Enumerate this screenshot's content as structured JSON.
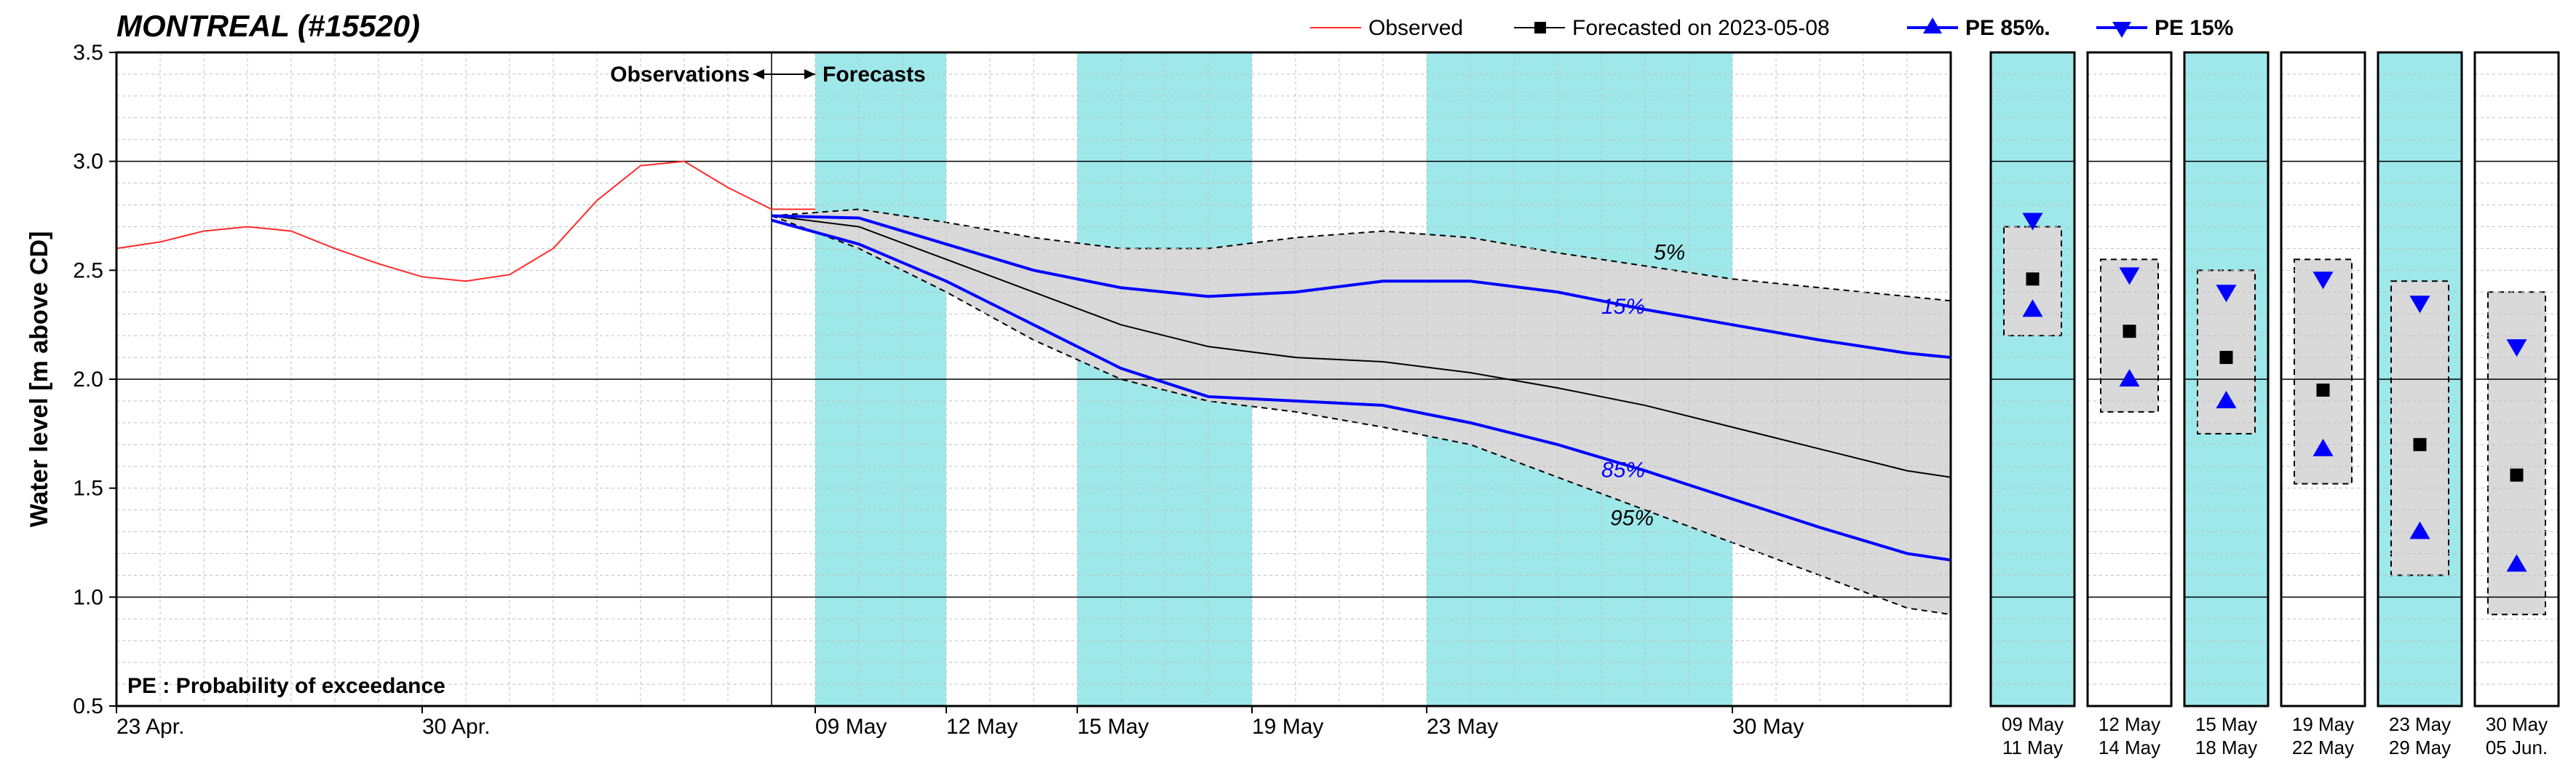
{
  "title_text": "MONTREAL (#15520)",
  "y_axis_label": "Water level [m above CD]",
  "obs_label": "Observations",
  "fcst_label": "Forecasts",
  "pe_legend": "PE : Probability of exceedance",
  "legend": {
    "observed": "Observed",
    "forecasted": "Forecasted on 2023-05-08",
    "pe85": "PE 85%.",
    "pe15": "PE 15%"
  },
  "colors": {
    "observed": "#ff2a2a",
    "forecast_median": "#000000",
    "pe_line": "#0000ff",
    "band_fill": "#d9d9d9",
    "weekend_fill": "#9ee8ea",
    "grid_minor": "#bfbfbf",
    "background": "#ffffff"
  },
  "main_chart": {
    "x_domain_days": [
      0,
      42
    ],
    "x_ticks": [
      {
        "d": 0,
        "label": "23 Apr."
      },
      {
        "d": 7,
        "label": "30 Apr."
      },
      {
        "d": 16,
        "label": "09 May"
      },
      {
        "d": 19,
        "label": "12 May"
      },
      {
        "d": 22,
        "label": "15 May"
      },
      {
        "d": 26,
        "label": "19 May"
      },
      {
        "d": 30,
        "label": "23 May"
      },
      {
        "d": 37,
        "label": "30 May"
      }
    ],
    "y_lim": [
      0.5,
      3.5
    ],
    "y_tick_step": 0.5,
    "forecast_start_day": 15,
    "weekend_bands_days": [
      [
        16,
        19
      ],
      [
        22,
        26
      ],
      [
        30,
        37
      ]
    ],
    "observed": [
      [
        0,
        2.6
      ],
      [
        1,
        2.63
      ],
      [
        2,
        2.68
      ],
      [
        3,
        2.7
      ],
      [
        4,
        2.68
      ],
      [
        5,
        2.6
      ],
      [
        6,
        2.53
      ],
      [
        7,
        2.47
      ],
      [
        8,
        2.45
      ],
      [
        9,
        2.48
      ],
      [
        10,
        2.6
      ],
      [
        11,
        2.82
      ],
      [
        12,
        2.98
      ],
      [
        13,
        3.0
      ],
      [
        14,
        2.88
      ],
      [
        15,
        2.78
      ],
      [
        16,
        2.78
      ]
    ],
    "band95": [
      [
        15,
        2.75
      ],
      [
        17,
        2.6
      ],
      [
        19,
        2.4
      ],
      [
        21,
        2.18
      ],
      [
        23,
        2.0
      ],
      [
        25,
        1.9
      ],
      [
        27,
        1.85
      ],
      [
        29,
        1.78
      ],
      [
        31,
        1.7
      ],
      [
        33,
        1.55
      ],
      [
        35,
        1.4
      ],
      [
        37,
        1.25
      ],
      [
        39,
        1.1
      ],
      [
        41,
        0.95
      ],
      [
        42,
        0.92
      ]
    ],
    "band5": [
      [
        15,
        2.75
      ],
      [
        17,
        2.78
      ],
      [
        19,
        2.72
      ],
      [
        21,
        2.65
      ],
      [
        23,
        2.6
      ],
      [
        25,
        2.6
      ],
      [
        27,
        2.65
      ],
      [
        29,
        2.68
      ],
      [
        31,
        2.65
      ],
      [
        33,
        2.58
      ],
      [
        35,
        2.52
      ],
      [
        37,
        2.46
      ],
      [
        39,
        2.42
      ],
      [
        41,
        2.38
      ],
      [
        42,
        2.36
      ]
    ],
    "median": [
      [
        15,
        2.75
      ],
      [
        17,
        2.7
      ],
      [
        19,
        2.55
      ],
      [
        21,
        2.4
      ],
      [
        23,
        2.25
      ],
      [
        25,
        2.15
      ],
      [
        27,
        2.1
      ],
      [
        29,
        2.08
      ],
      [
        31,
        2.03
      ],
      [
        33,
        1.96
      ],
      [
        35,
        1.88
      ],
      [
        37,
        1.78
      ],
      [
        39,
        1.68
      ],
      [
        41,
        1.58
      ],
      [
        42,
        1.55
      ]
    ],
    "pe85": [
      [
        15,
        2.73
      ],
      [
        17,
        2.62
      ],
      [
        19,
        2.45
      ],
      [
        21,
        2.25
      ],
      [
        23,
        2.05
      ],
      [
        25,
        1.92
      ],
      [
        27,
        1.9
      ],
      [
        29,
        1.88
      ],
      [
        31,
        1.8
      ],
      [
        33,
        1.7
      ],
      [
        35,
        1.58
      ],
      [
        37,
        1.45
      ],
      [
        39,
        1.32
      ],
      [
        41,
        1.2
      ],
      [
        42,
        1.17
      ]
    ],
    "pe15": [
      [
        15,
        2.75
      ],
      [
        17,
        2.74
      ],
      [
        19,
        2.62
      ],
      [
        21,
        2.5
      ],
      [
        23,
        2.42
      ],
      [
        25,
        2.38
      ],
      [
        27,
        2.4
      ],
      [
        29,
        2.45
      ],
      [
        31,
        2.45
      ],
      [
        33,
        2.4
      ],
      [
        35,
        2.32
      ],
      [
        37,
        2.25
      ],
      [
        39,
        2.18
      ],
      [
        41,
        2.12
      ],
      [
        42,
        2.1
      ]
    ],
    "annotations": [
      {
        "text": "5%",
        "d": 35.2,
        "y": 2.55,
        "cls": "pe-anno-black"
      },
      {
        "text": "15%",
        "d": 34.0,
        "y": 2.3,
        "cls": "pe-anno"
      },
      {
        "text": "85%",
        "d": 34.0,
        "y": 1.55,
        "cls": "pe-anno"
      },
      {
        "text": "95%",
        "d": 34.2,
        "y": 1.33,
        "cls": "pe-anno-black"
      }
    ]
  },
  "panels": [
    {
      "labels": [
        "09 May",
        "11 May"
      ],
      "weekend": true,
      "band": [
        2.2,
        2.7
      ],
      "median": 2.46,
      "pe85": 2.32,
      "pe15": 2.73
    },
    {
      "labels": [
        "12 May",
        "14 May"
      ],
      "weekend": false,
      "band": [
        1.85,
        2.55
      ],
      "median": 2.22,
      "pe85": 2.0,
      "pe15": 2.48
    },
    {
      "labels": [
        "15 May",
        "18 May"
      ],
      "weekend": true,
      "band": [
        1.75,
        2.5
      ],
      "median": 2.1,
      "pe85": 1.9,
      "pe15": 2.4
    },
    {
      "labels": [
        "19 May",
        "22 May"
      ],
      "weekend": false,
      "band": [
        1.52,
        2.55
      ],
      "median": 1.95,
      "pe85": 1.68,
      "pe15": 2.46
    },
    {
      "labels": [
        "23 May",
        "29 May"
      ],
      "weekend": true,
      "band": [
        1.1,
        2.45
      ],
      "median": 1.7,
      "pe85": 1.3,
      "pe15": 2.35
    },
    {
      "labels": [
        "30 May",
        "05 Jun."
      ],
      "weekend": false,
      "band": [
        0.92,
        2.4
      ],
      "median": 1.56,
      "pe85": 1.15,
      "pe15": 2.15
    }
  ]
}
